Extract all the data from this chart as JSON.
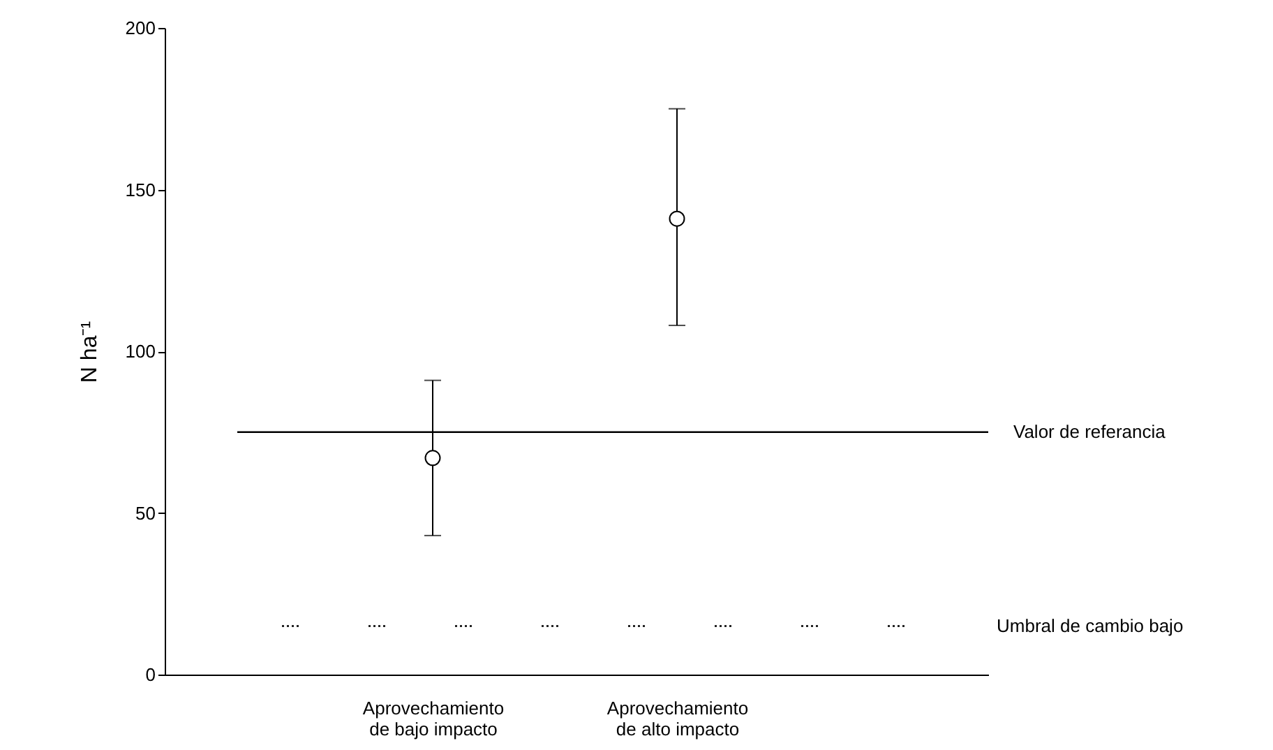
{
  "chart_data": {
    "type": "scatter",
    "ylabel": "N ha⁻¹",
    "categories": [
      "Aprovechamiento de bajo impacto",
      "Aprovechamiento de alto impacto"
    ],
    "series": [
      {
        "color": "#000000",
        "values": [
          67,
          141
        ],
        "errors": [
          [
            43,
            91
          ],
          [
            108,
            175
          ]
        ]
      }
    ],
    "marker": "circle",
    "ylim": [
      0,
      200
    ],
    "yticks": [
      0,
      50,
      100,
      150,
      200
    ],
    "grid": false,
    "ref_lines": [
      {
        "axis": "y",
        "value": 75,
        "label": "Valor de referancia",
        "line_style": "solid",
        "color": "#000000"
      },
      {
        "axis": "y",
        "value": 15,
        "label": "Umbral de cambio bajo",
        "line_style": "dotted",
        "color": "#000000"
      }
    ]
  }
}
